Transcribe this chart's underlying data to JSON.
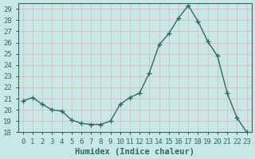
{
  "x": [
    0,
    1,
    2,
    3,
    4,
    5,
    6,
    7,
    8,
    9,
    10,
    11,
    12,
    13,
    14,
    15,
    16,
    17,
    18,
    19,
    20,
    21,
    22,
    23
  ],
  "y": [
    20.8,
    21.1,
    20.5,
    20.0,
    19.9,
    19.1,
    18.8,
    18.7,
    18.7,
    19.0,
    20.5,
    21.1,
    21.5,
    23.3,
    25.8,
    26.8,
    28.2,
    29.3,
    27.9,
    26.1,
    24.8,
    21.5,
    19.3,
    18.0
  ],
  "line_color": "#2e6b5e",
  "marker": "+",
  "marker_size": 4,
  "bg_color": "#c8e8e8",
  "grid_color": "#e8b8b8",
  "xlabel": "Humidex (Indice chaleur)",
  "ylim": [
    18,
    29.5
  ],
  "xlim": [
    -0.5,
    23.5
  ],
  "yticks": [
    18,
    19,
    20,
    21,
    22,
    23,
    24,
    25,
    26,
    27,
    28,
    29
  ],
  "font_color": "#2e6b5e",
  "tick_fontsize": 6.5,
  "label_fontsize": 7.5
}
